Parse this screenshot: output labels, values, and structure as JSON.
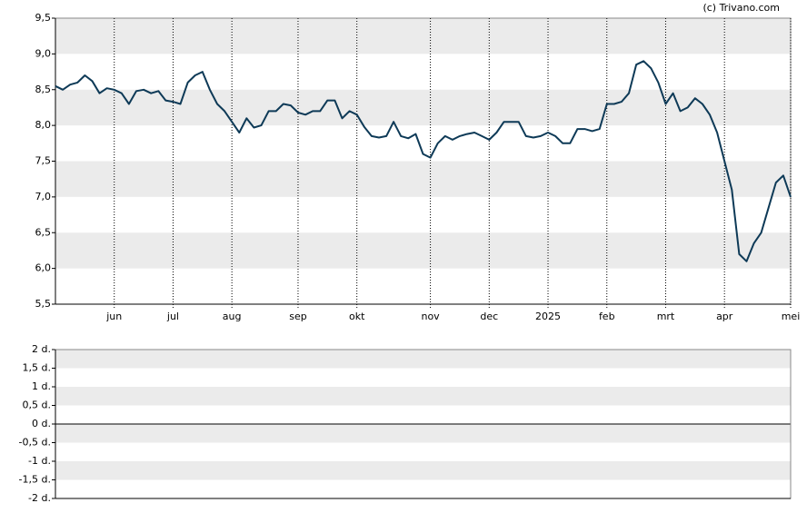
{
  "source": "(c) Trivano.com",
  "chart_data": [
    {
      "type": "line",
      "categories": [
        null,
        null,
        null,
        null,
        null,
        null,
        null,
        null,
        "jun",
        null,
        null,
        null,
        null,
        null,
        null,
        null,
        "jul",
        null,
        null,
        null,
        null,
        null,
        null,
        null,
        "aug",
        null,
        null,
        null,
        null,
        null,
        null,
        null,
        null,
        "sep",
        null,
        null,
        null,
        null,
        null,
        null,
        null,
        "okt",
        null,
        null,
        null,
        null,
        null,
        null,
        null,
        null,
        null,
        "nov",
        null,
        null,
        null,
        null,
        null,
        null,
        null,
        "dec",
        null,
        null,
        null,
        null,
        null,
        null,
        null,
        "2025",
        null,
        null,
        null,
        null,
        null,
        null,
        null,
        "feb",
        null,
        null,
        null,
        null,
        null,
        null,
        null,
        "mrt",
        null,
        null,
        null,
        null,
        null,
        null,
        null,
        "apr",
        null,
        null,
        null,
        null,
        null,
        null,
        null,
        null,
        "mei"
      ],
      "series": [
        {
          "color": "#0e3a57",
          "values": [
            8.55,
            8.5,
            8.57,
            8.6,
            8.7,
            8.62,
            8.45,
            8.52,
            8.5,
            8.45,
            8.3,
            8.48,
            8.5,
            8.45,
            8.48,
            8.35,
            8.33,
            8.3,
            8.6,
            8.7,
            8.75,
            8.5,
            8.3,
            8.2,
            8.05,
            7.9,
            8.1,
            7.97,
            8.0,
            8.2,
            8.2,
            8.3,
            8.28,
            8.18,
            8.15,
            8.2,
            8.2,
            8.35,
            8.35,
            8.1,
            8.2,
            8.15,
            7.98,
            7.85,
            7.83,
            7.85,
            8.05,
            7.85,
            7.82,
            7.88,
            7.6,
            7.55,
            7.75,
            7.85,
            7.8,
            7.85,
            7.88,
            7.9,
            7.85,
            7.8,
            7.9,
            8.05,
            8.05,
            8.05,
            7.85,
            7.83,
            7.85,
            7.9,
            7.85,
            7.75,
            7.75,
            7.95,
            7.95,
            7.92,
            7.95,
            8.3,
            8.3,
            8.33,
            8.45,
            8.85,
            8.9,
            8.8,
            8.6,
            8.3,
            8.45,
            8.2,
            8.25,
            8.38,
            8.3,
            8.15,
            7.9,
            7.5,
            7.1,
            6.2,
            6.1,
            6.35,
            6.5,
            6.85,
            7.2,
            7.3,
            7.0
          ]
        }
      ],
      "ylim": [
        5.5,
        9.5
      ],
      "yticks": [
        {
          "value": 5.5,
          "label": "5,5"
        },
        {
          "value": 6,
          "label": "6,0"
        },
        {
          "value": 6.5,
          "label": "6,5"
        },
        {
          "value": 7,
          "label": "7,0"
        },
        {
          "value": 7.5,
          "label": "7,5"
        },
        {
          "value": 8,
          "label": "8,0"
        },
        {
          "value": 8.5,
          "label": "8,5"
        },
        {
          "value": 9,
          "label": "9,0"
        },
        {
          "value": 9.5,
          "label": "9,5"
        }
      ]
    },
    {
      "type": "line",
      "ylim": [
        -2,
        2
      ],
      "yticks": [
        {
          "value": -2,
          "label": "-2 d."
        },
        {
          "value": -1.5,
          "label": "-1,5 d."
        },
        {
          "value": -1,
          "label": "-1 d."
        },
        {
          "value": -0.5,
          "label": "-0,5 d."
        },
        {
          "value": 0,
          "label": "0 d."
        },
        {
          "value": 0.5,
          "label": "0,5 d."
        },
        {
          "value": 1,
          "label": "1 d."
        },
        {
          "value": 1.5,
          "label": "1,5 d."
        },
        {
          "value": 2,
          "label": "2 d."
        }
      ]
    }
  ]
}
